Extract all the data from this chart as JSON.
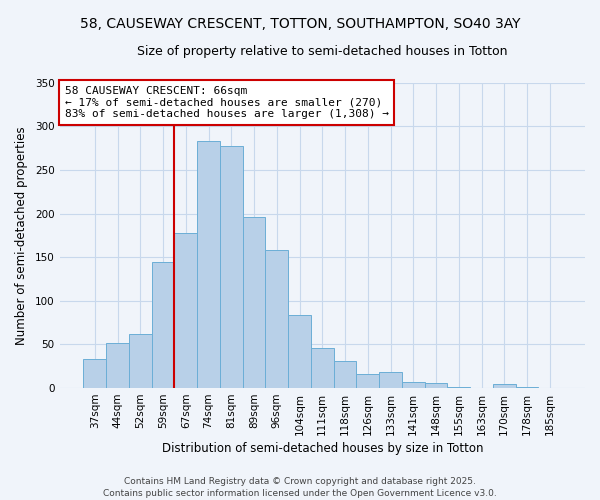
{
  "title": "58, CAUSEWAY CRESCENT, TOTTON, SOUTHAMPTON, SO40 3AY",
  "subtitle": "Size of property relative to semi-detached houses in Totton",
  "xlabel": "Distribution of semi-detached houses by size in Totton",
  "ylabel": "Number of semi-detached properties",
  "categories": [
    "37sqm",
    "44sqm",
    "52sqm",
    "59sqm",
    "67sqm",
    "74sqm",
    "81sqm",
    "89sqm",
    "96sqm",
    "104sqm",
    "111sqm",
    "118sqm",
    "126sqm",
    "133sqm",
    "141sqm",
    "148sqm",
    "155sqm",
    "163sqm",
    "170sqm",
    "178sqm",
    "185sqm"
  ],
  "values": [
    33,
    52,
    62,
    145,
    178,
    283,
    278,
    196,
    158,
    84,
    46,
    31,
    16,
    18,
    7,
    6,
    1,
    0,
    5,
    1,
    0
  ],
  "bar_color": "#b8d0e8",
  "bar_edge_color": "#6baed6",
  "background_color": "#f0f4fa",
  "grid_color": "#c8d8ec",
  "vline_color": "#cc0000",
  "annotation_title": "58 CAUSEWAY CRESCENT: 66sqm",
  "annotation_line1": "← 17% of semi-detached houses are smaller (270)",
  "annotation_line2": "83% of semi-detached houses are larger (1,308) →",
  "annotation_box_color": "#ffffff",
  "annotation_box_edge": "#cc0000",
  "ylim": [
    0,
    350
  ],
  "yticks": [
    0,
    50,
    100,
    150,
    200,
    250,
    300,
    350
  ],
  "footer1": "Contains HM Land Registry data © Crown copyright and database right 2025.",
  "footer2": "Contains public sector information licensed under the Open Government Licence v3.0.",
  "title_fontsize": 10,
  "subtitle_fontsize": 9,
  "axis_label_fontsize": 8.5,
  "tick_fontsize": 7.5,
  "annotation_fontsize": 8,
  "footer_fontsize": 6.5
}
